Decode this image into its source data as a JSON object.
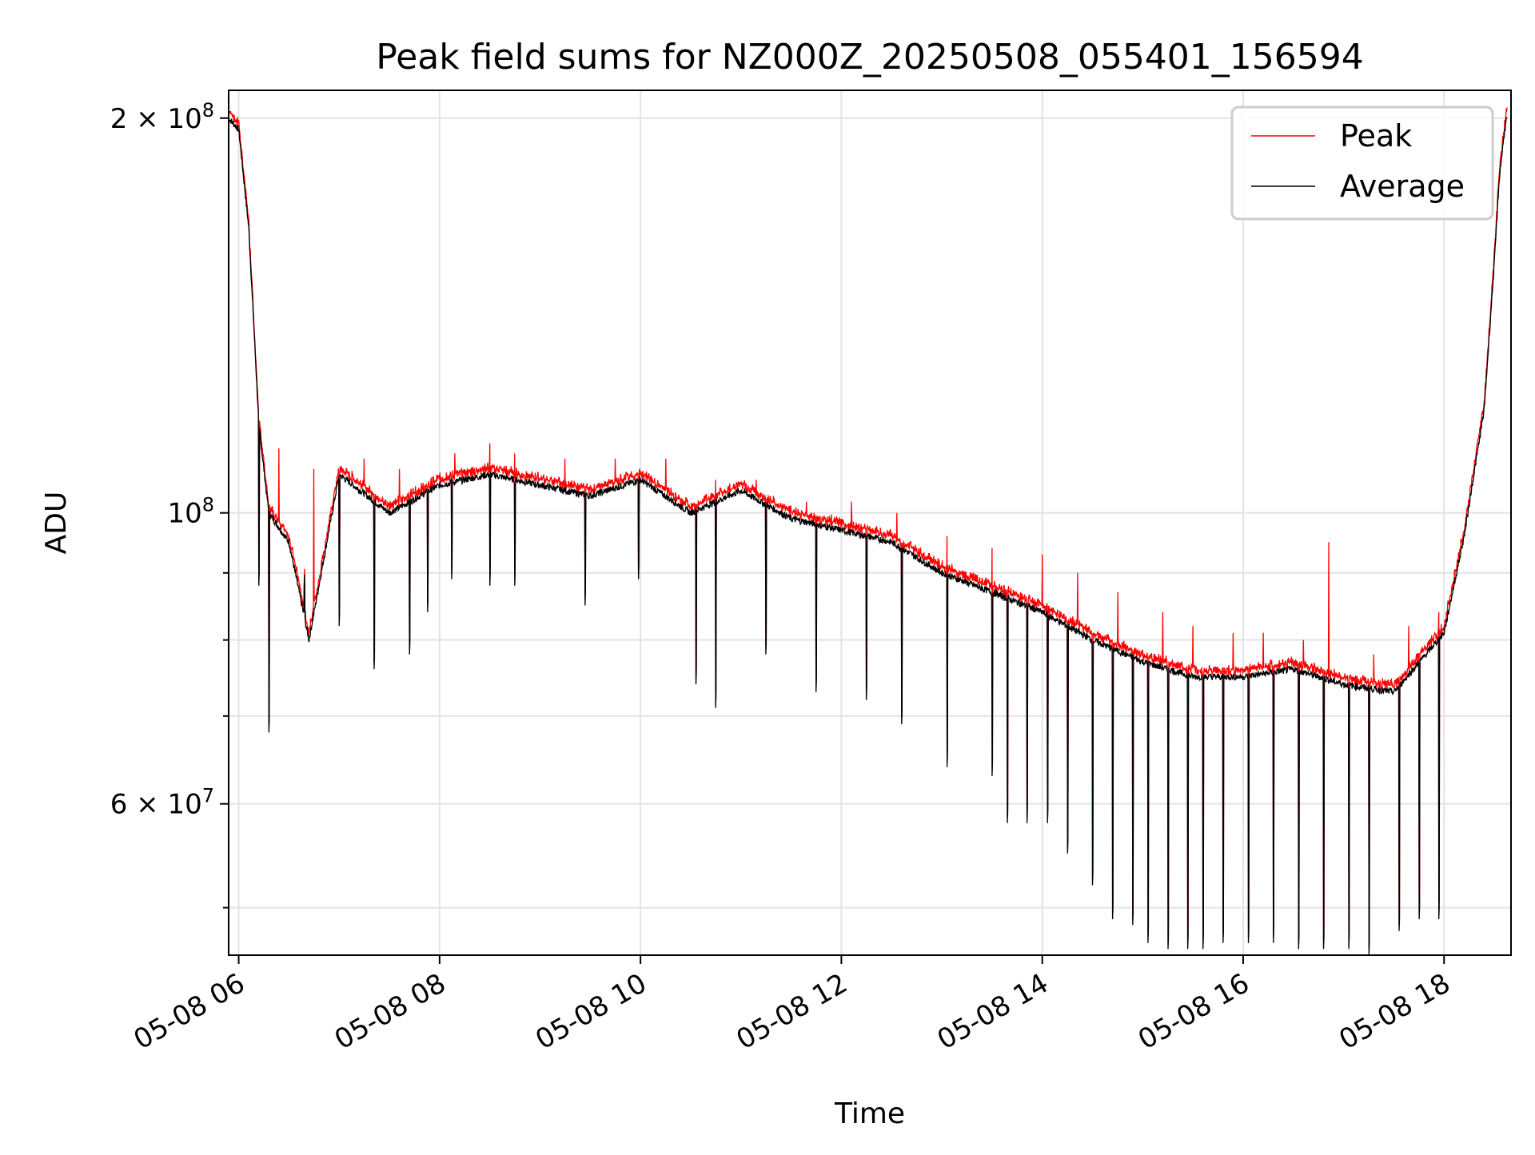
{
  "chart_data": {
    "type": "line",
    "title": "Peak field sums for NZ000Z_20250508_055401_156594",
    "xlabel": "Time",
    "ylabel": "ADU",
    "y_scale": "log",
    "x_range": [
      "05-08 05:54",
      "05-08 18:40"
    ],
    "ylim": [
      46000000,
      210000000
    ],
    "x_ticks": [
      "05-08 06",
      "05-08 08",
      "05-08 10",
      "05-08 12",
      "05-08 14",
      "05-08 16",
      "05-08 18"
    ],
    "y_ticks": [
      {
        "value": 60000000,
        "mantissa": "6",
        "exponent": "7"
      },
      {
        "value": 100000000,
        "mantissa": "",
        "exponent": "8"
      },
      {
        "value": 200000000,
        "mantissa": "2",
        "exponent": "8"
      }
    ],
    "grid": true,
    "legend_position": "top-right",
    "colors": {
      "peak": "#ff0000",
      "average": "#000000"
    },
    "series": [
      {
        "name": "Peak"
      },
      {
        "name": "Average"
      }
    ],
    "baseline_hours": [
      5.9,
      6.0,
      6.1,
      6.2,
      6.3,
      6.5,
      6.7,
      7.0,
      7.5,
      8.0,
      8.5,
      9.0,
      9.5,
      10.0,
      10.5,
      11.0,
      11.5,
      12.0,
      12.5,
      13.0,
      13.5,
      14.0,
      14.5,
      15.0,
      15.5,
      16.0,
      16.5,
      17.0,
      17.5,
      18.0,
      18.2,
      18.4,
      18.5,
      18.55,
      18.6,
      18.65
    ],
    "average_baseline": [
      200000000,
      196000000,
      165000000,
      117000000,
      100000000,
      95000000,
      80000000,
      107000000,
      100000000,
      105000000,
      107000000,
      105000000,
      103000000,
      106000000,
      100000000,
      104000000,
      99000000,
      97000000,
      95000000,
      90000000,
      87000000,
      84000000,
      80000000,
      77000000,
      75000000,
      75000000,
      76000000,
      74000000,
      73000000,
      81000000,
      96000000,
      120000000,
      155000000,
      180000000,
      195000000,
      205000000
    ],
    "dips": [
      {
        "hour": 6.2,
        "value": 88000000
      },
      {
        "hour": 6.3,
        "value": 68000000
      },
      {
        "hour": 6.65,
        "value": 88000000
      },
      {
        "hour": 7.0,
        "value": 82000000
      },
      {
        "hour": 7.35,
        "value": 76000000
      },
      {
        "hour": 7.7,
        "value": 78000000
      },
      {
        "hour": 7.88,
        "value": 84000000
      },
      {
        "hour": 8.12,
        "value": 89000000
      },
      {
        "hour": 8.5,
        "value": 88000000
      },
      {
        "hour": 8.75,
        "value": 88000000
      },
      {
        "hour": 9.45,
        "value": 85000000
      },
      {
        "hour": 9.98,
        "value": 89000000
      },
      {
        "hour": 10.55,
        "value": 74000000
      },
      {
        "hour": 10.75,
        "value": 71000000
      },
      {
        "hour": 11.25,
        "value": 78000000
      },
      {
        "hour": 11.75,
        "value": 73000000
      },
      {
        "hour": 12.25,
        "value": 72000000
      },
      {
        "hour": 12.6,
        "value": 69000000
      },
      {
        "hour": 13.05,
        "value": 64000000
      },
      {
        "hour": 13.5,
        "value": 63000000
      },
      {
        "hour": 13.65,
        "value": 58000000
      },
      {
        "hour": 13.85,
        "value": 58000000
      },
      {
        "hour": 14.05,
        "value": 58000000
      },
      {
        "hour": 14.25,
        "value": 55000000
      },
      {
        "hour": 14.5,
        "value": 52000000
      },
      {
        "hour": 14.7,
        "value": 49000000
      },
      {
        "hour": 14.9,
        "value": 48500000
      },
      {
        "hour": 15.05,
        "value": 47000000
      },
      {
        "hour": 15.25,
        "value": 46500000
      },
      {
        "hour": 15.45,
        "value": 46500000
      },
      {
        "hour": 15.6,
        "value": 46500000
      },
      {
        "hour": 15.8,
        "value": 47000000
      },
      {
        "hour": 16.05,
        "value": 47000000
      },
      {
        "hour": 16.3,
        "value": 47000000
      },
      {
        "hour": 16.55,
        "value": 46500000
      },
      {
        "hour": 16.8,
        "value": 46500000
      },
      {
        "hour": 17.05,
        "value": 46500000
      },
      {
        "hour": 17.25,
        "value": 46000000
      },
      {
        "hour": 17.55,
        "value": 48000000
      },
      {
        "hour": 17.75,
        "value": 49000000
      },
      {
        "hour": 17.95,
        "value": 49000000
      }
    ],
    "peak_spikes": [
      {
        "hour": 6.4,
        "value": 112000000
      },
      {
        "hour": 6.75,
        "value": 108000000
      },
      {
        "hour": 7.25,
        "value": 110000000
      },
      {
        "hour": 7.6,
        "value": 108000000
      },
      {
        "hour": 8.15,
        "value": 111000000
      },
      {
        "hour": 8.5,
        "value": 113000000
      },
      {
        "hour": 8.75,
        "value": 111000000
      },
      {
        "hour": 9.25,
        "value": 110000000
      },
      {
        "hour": 9.75,
        "value": 110000000
      },
      {
        "hour": 10.25,
        "value": 110000000
      },
      {
        "hour": 10.75,
        "value": 106000000
      },
      {
        "hour": 11.15,
        "value": 106000000
      },
      {
        "hour": 11.65,
        "value": 102000000
      },
      {
        "hour": 12.1,
        "value": 102000000
      },
      {
        "hour": 12.55,
        "value": 100000000
      },
      {
        "hour": 13.05,
        "value": 96000000
      },
      {
        "hour": 13.5,
        "value": 94000000
      },
      {
        "hour": 14.0,
        "value": 93000000
      },
      {
        "hour": 14.35,
        "value": 90000000
      },
      {
        "hour": 14.75,
        "value": 87000000
      },
      {
        "hour": 15.2,
        "value": 84000000
      },
      {
        "hour": 15.5,
        "value": 82000000
      },
      {
        "hour": 15.9,
        "value": 81000000
      },
      {
        "hour": 16.2,
        "value": 81000000
      },
      {
        "hour": 16.6,
        "value": 80000000
      },
      {
        "hour": 16.85,
        "value": 95000000
      },
      {
        "hour": 17.3,
        "value": 78000000
      },
      {
        "hour": 17.65,
        "value": 82000000
      },
      {
        "hour": 17.95,
        "value": 84000000
      }
    ]
  }
}
